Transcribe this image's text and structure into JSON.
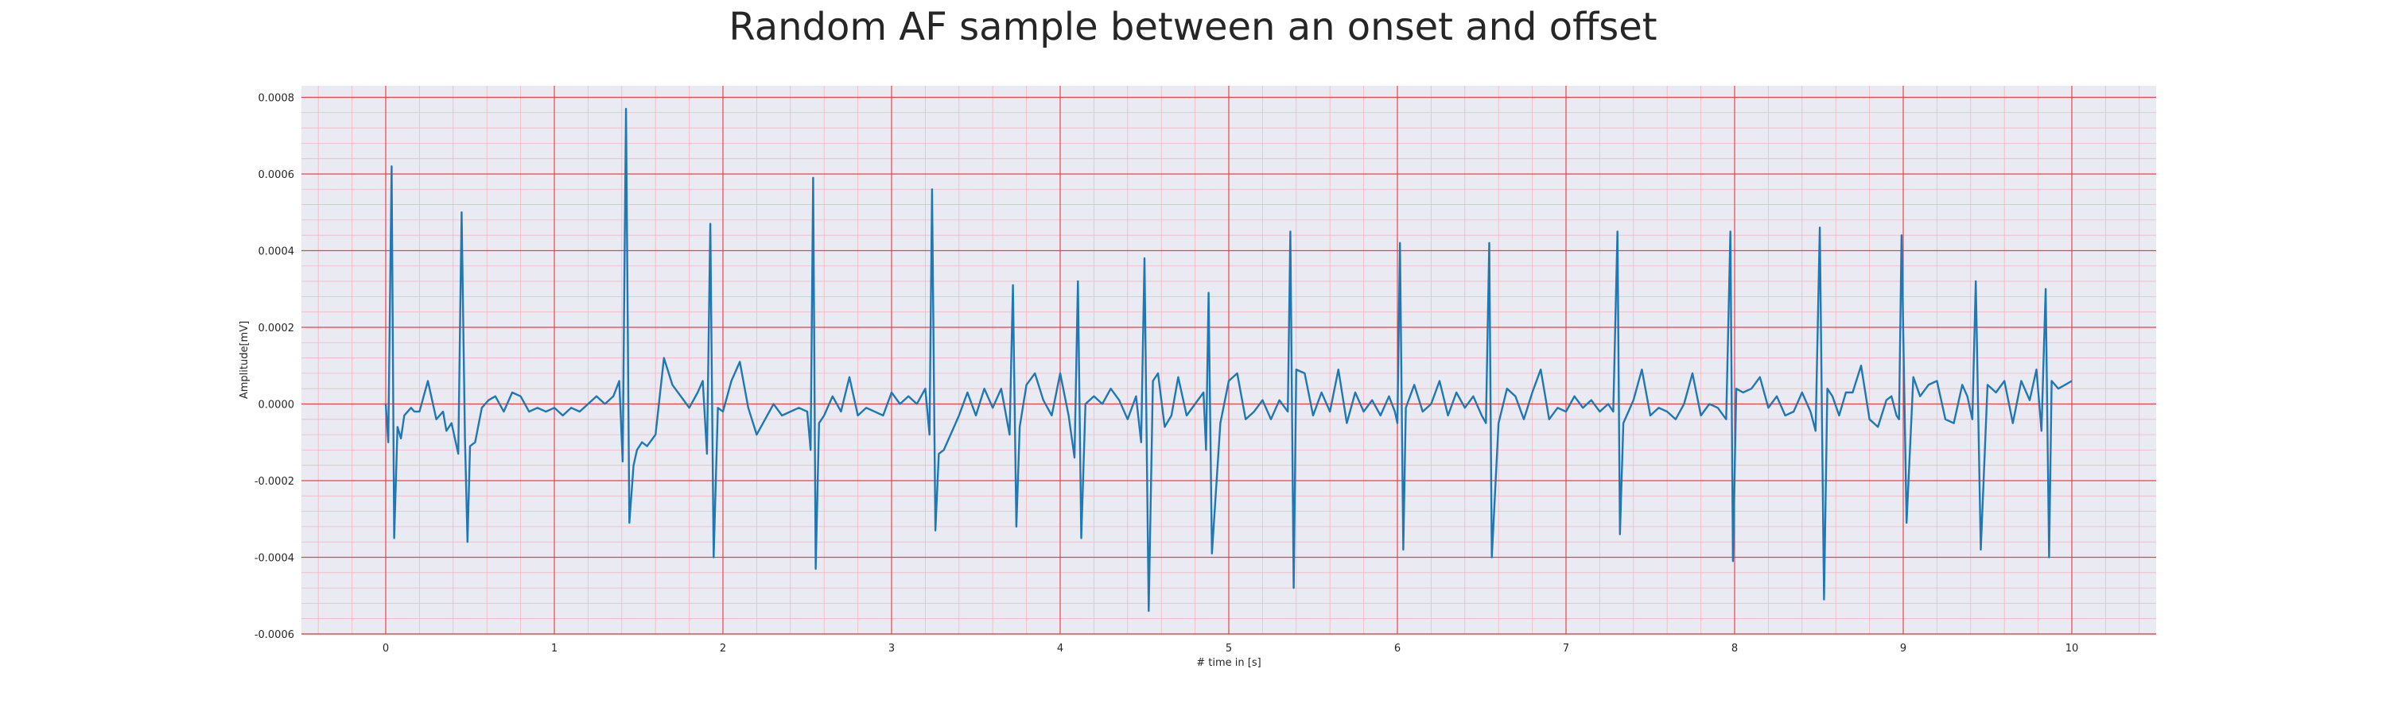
{
  "chart_data": {
    "type": "line",
    "title": "Random AF sample between an onset and offset",
    "xlabel": "# time in [s]",
    "ylabel": "Amplitude[mV]",
    "xlim": [
      -0.5,
      10.5
    ],
    "ylim": [
      -0.0006,
      0.00083
    ],
    "x_ticks": [
      0,
      1,
      2,
      3,
      4,
      5,
      6,
      7,
      8,
      9,
      10
    ],
    "x_tick_labels": [
      "0",
      "1",
      "2",
      "3",
      "4",
      "5",
      "6",
      "7",
      "8",
      "9",
      "10"
    ],
    "y_ticks": [
      -0.0006,
      -0.0004,
      -0.0002,
      0.0,
      0.0002,
      0.0004,
      0.0006,
      0.0008
    ],
    "y_tick_labels": [
      "-0.0006",
      "-0.0004",
      "-0.0002",
      "0.0000",
      "0.0002",
      "0.0004",
      "0.0006",
      "0.0008"
    ],
    "grid": true,
    "minor_grid": true,
    "series_color": "#1f77b4",
    "major_grid_color": "#e8434b",
    "minor_grid_color": "#f2b8bf",
    "background_color": "#eaeaf2",
    "series": [
      {
        "x": [
          0.0,
          0.015,
          0.035,
          0.05,
          0.07,
          0.09,
          0.11,
          0.13,
          0.15,
          0.17,
          0.2,
          0.25,
          0.3,
          0.34,
          0.36,
          0.39,
          0.43,
          0.45,
          0.47,
          0.485,
          0.5,
          0.53,
          0.57,
          0.61,
          0.65,
          0.7,
          0.75,
          0.8,
          0.85,
          0.9,
          0.95,
          1.0,
          1.05,
          1.1,
          1.15,
          1.2,
          1.25,
          1.3,
          1.35,
          1.385,
          1.405,
          1.425,
          1.445,
          1.47,
          1.49,
          1.52,
          1.55,
          1.6,
          1.65,
          1.7,
          1.75,
          1.8,
          1.85,
          1.88,
          1.905,
          1.925,
          1.945,
          1.97,
          2.0,
          2.05,
          2.1,
          2.15,
          2.2,
          2.25,
          2.3,
          2.35,
          2.4,
          2.45,
          2.5,
          2.52,
          2.535,
          2.55,
          2.57,
          2.6,
          2.65,
          2.7,
          2.75,
          2.8,
          2.85,
          2.9,
          2.95,
          3.0,
          3.05,
          3.1,
          3.15,
          3.2,
          3.225,
          3.24,
          3.26,
          3.28,
          3.31,
          3.35,
          3.4,
          3.45,
          3.5,
          3.55,
          3.6,
          3.65,
          3.7,
          3.72,
          3.74,
          3.76,
          3.8,
          3.85,
          3.9,
          3.95,
          4.0,
          4.05,
          4.085,
          4.105,
          4.125,
          4.15,
          4.2,
          4.25,
          4.3,
          4.35,
          4.4,
          4.45,
          4.48,
          4.5,
          4.525,
          4.55,
          4.58,
          4.62,
          4.66,
          4.7,
          4.75,
          4.8,
          4.85,
          4.865,
          4.88,
          4.9,
          4.95,
          5.0,
          5.05,
          5.1,
          5.15,
          5.2,
          5.25,
          5.3,
          5.35,
          5.365,
          5.385,
          5.4,
          5.45,
          5.5,
          5.55,
          5.6,
          5.65,
          5.7,
          5.75,
          5.8,
          5.85,
          5.9,
          5.95,
          5.985,
          6.0,
          6.015,
          6.035,
          6.05,
          6.1,
          6.15,
          6.2,
          6.25,
          6.3,
          6.35,
          6.4,
          6.45,
          6.5,
          6.525,
          6.545,
          6.56,
          6.6,
          6.65,
          6.7,
          6.75,
          6.8,
          6.85,
          6.9,
          6.95,
          7.0,
          7.05,
          7.1,
          7.15,
          7.2,
          7.25,
          7.28,
          7.305,
          7.32,
          7.34,
          7.4,
          7.45,
          7.5,
          7.55,
          7.6,
          7.65,
          7.7,
          7.75,
          7.8,
          7.85,
          7.9,
          7.95,
          7.975,
          7.99,
          8.01,
          8.05,
          8.1,
          8.15,
          8.2,
          8.25,
          8.3,
          8.35,
          8.4,
          8.45,
          8.48,
          8.505,
          8.53,
          8.55,
          8.58,
          8.62,
          8.66,
          8.7,
          8.75,
          8.8,
          8.85,
          8.9,
          8.93,
          8.96,
          8.975,
          8.99,
          9.02,
          9.06,
          9.1,
          9.15,
          9.2,
          9.25,
          9.3,
          9.35,
          9.38,
          9.41,
          9.43,
          9.46,
          9.5,
          9.55,
          9.6,
          9.65,
          9.7,
          9.75,
          9.79,
          9.82,
          9.845,
          9.865,
          9.88,
          9.92,
          9.96,
          10.0
        ],
        "y": [
          0.0,
          -0.0001,
          0.00062,
          -0.00035,
          -6e-05,
          -9e-05,
          -3e-05,
          -2e-05,
          -1e-05,
          -2e-05,
          -2e-05,
          6e-05,
          -4e-05,
          -2e-05,
          -7e-05,
          -5e-05,
          -0.00013,
          0.0005,
          -9e-05,
          -0.00036,
          -0.00011,
          -0.0001,
          -1e-05,
          1e-05,
          2e-05,
          -2e-05,
          3e-05,
          2e-05,
          -2e-05,
          -1e-05,
          -2e-05,
          -1e-05,
          -3e-05,
          -1e-05,
          -2e-05,
          0.0,
          2e-05,
          0.0,
          2e-05,
          6e-05,
          -0.00015,
          0.00077,
          -0.00031,
          -0.00016,
          -0.00012,
          -0.0001,
          -0.00011,
          -8e-05,
          0.00012,
          5e-05,
          2e-05,
          -1e-05,
          3e-05,
          6e-05,
          -0.00013,
          0.00047,
          -0.0004,
          -1e-05,
          -2e-05,
          6e-05,
          0.00011,
          -1e-05,
          -8e-05,
          -4e-05,
          0.0,
          -3e-05,
          -2e-05,
          -1e-05,
          -2e-05,
          -0.00012,
          0.00059,
          -0.00043,
          -5e-05,
          -3e-05,
          2e-05,
          -2e-05,
          7e-05,
          -3e-05,
          -1e-05,
          -2e-05,
          -3e-05,
          3e-05,
          0.0,
          2e-05,
          0.0,
          4e-05,
          -8e-05,
          0.00056,
          -0.00033,
          -0.00013,
          -0.00012,
          -8e-05,
          -3e-05,
          3e-05,
          -3e-05,
          4e-05,
          -1e-05,
          4e-05,
          -8e-05,
          0.00031,
          -0.00032,
          -6e-05,
          5e-05,
          8e-05,
          1e-05,
          -3e-05,
          8e-05,
          -3e-05,
          -0.00014,
          0.00032,
          -0.00035,
          0.0,
          2e-05,
          0.0,
          4e-05,
          1e-05,
          -4e-05,
          2e-05,
          -0.0001,
          0.00038,
          -0.00054,
          6e-05,
          8e-05,
          -6e-05,
          -3e-05,
          7e-05,
          -3e-05,
          0.0,
          3e-05,
          -0.00012,
          0.00029,
          -0.00039,
          -5e-05,
          6e-05,
          8e-05,
          -4e-05,
          -2e-05,
          1e-05,
          -4e-05,
          1e-05,
          -2e-05,
          0.00045,
          -0.00048,
          9e-05,
          8e-05,
          -3e-05,
          3e-05,
          -2e-05,
          9e-05,
          -5e-05,
          3e-05,
          -2e-05,
          1e-05,
          -3e-05,
          2e-05,
          -2e-05,
          -5e-05,
          0.00042,
          -0.00038,
          -1e-05,
          5e-05,
          -2e-05,
          0.0,
          6e-05,
          -3e-05,
          3e-05,
          -1e-05,
          2e-05,
          -3e-05,
          -5e-05,
          0.00042,
          -0.0004,
          -5e-05,
          4e-05,
          2e-05,
          -4e-05,
          3e-05,
          9e-05,
          -4e-05,
          -1e-05,
          -2e-05,
          2e-05,
          -1e-05,
          1e-05,
          -2e-05,
          0.0,
          -2e-05,
          0.00045,
          -0.00034,
          -5e-05,
          1e-05,
          9e-05,
          -3e-05,
          -1e-05,
          -2e-05,
          -4e-05,
          0.0,
          8e-05,
          -3e-05,
          0.0,
          -1e-05,
          -4e-05,
          0.00045,
          -0.00041,
          4e-05,
          3e-05,
          4e-05,
          7e-05,
          -1e-05,
          2e-05,
          -3e-05,
          -2e-05,
          3e-05,
          -2e-05,
          -7e-05,
          0.00046,
          -0.00051,
          4e-05,
          2e-05,
          -3e-05,
          3e-05,
          3e-05,
          0.0001,
          -4e-05,
          -6e-05,
          1e-05,
          2e-05,
          -3e-05,
          -4e-05,
          0.00044,
          -0.00031,
          7e-05,
          2e-05,
          5e-05,
          6e-05,
          -4e-05,
          -5e-05,
          5e-05,
          2e-05,
          -4e-05,
          0.00032,
          -0.00038,
          5e-05,
          3e-05,
          6e-05,
          -5e-05,
          6e-05,
          1e-05,
          9e-05,
          -7e-05,
          0.0003,
          -0.0004,
          6e-05,
          4e-05,
          5e-05,
          6e-05
        ]
      }
    ]
  }
}
